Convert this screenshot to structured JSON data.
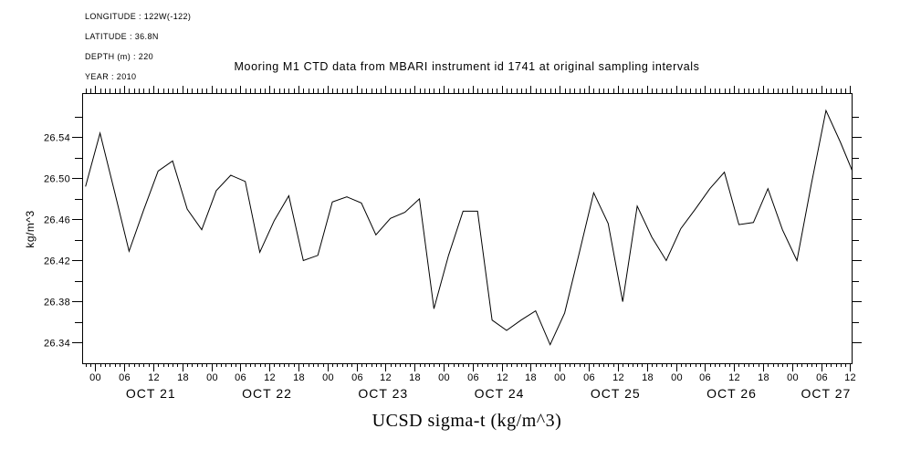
{
  "colors": {
    "background": "#ffffff",
    "foreground": "#000000",
    "line": "#000000"
  },
  "meta": {
    "lines": [
      "LONGITUDE : 122W(-122)",
      "LATITUDE : 36.8N",
      "DEPTH (m) : 220",
      "YEAR : 2010"
    ]
  },
  "header": {
    "title": "Mooring M1 CTD data from MBARI instrument id 1741 at original sampling intervals"
  },
  "chart_data": {
    "type": "line",
    "title": "Mooring M1 CTD data from MBARI instrument id 1741 at original sampling intervals",
    "ylabel": "kg/m^3",
    "xlabel": "UCSD sigma-t (kg/m^3)",
    "grid": false,
    "legend": "none",
    "ylim": [
      26.32,
      26.583
    ],
    "xlim_hours_from_oct21_0000": [
      -2.7,
      156.3
    ],
    "y_labeled_ticks": [
      26.34,
      26.38,
      26.42,
      26.46,
      26.5,
      26.54
    ],
    "y_tick_step": 0.02,
    "y_tick_range": [
      26.34,
      26.56
    ],
    "x_major_tick_step_hours": 6,
    "x_minor_tick_step_hours": 1,
    "x_hour_label_cycle": [
      "00",
      "06",
      "12",
      "18"
    ],
    "day_labels": [
      {
        "label": "OCT 21",
        "t": 11.5
      },
      {
        "label": "OCT 22",
        "t": 35.5
      },
      {
        "label": "OCT 23",
        "t": 59.5
      },
      {
        "label": "OCT 24",
        "t": 83.5
      },
      {
        "label": "OCT 25",
        "t": 107.5
      },
      {
        "label": "OCT 26",
        "t": 131.5
      },
      {
        "label": "OCT 27",
        "t": 151.0
      }
    ],
    "sampling_interval_hours": 3,
    "start_hour_offset_from_oct21_0000": -2,
    "times": [
      "Oct 20 22:00",
      "Oct 21 01:00",
      "Oct 21 04:00",
      "Oct 21 07:00",
      "Oct 21 10:00",
      "Oct 21 13:00",
      "Oct 21 16:00",
      "Oct 21 19:00",
      "Oct 21 22:00",
      "Oct 22 01:00",
      "Oct 22 04:00",
      "Oct 22 07:00",
      "Oct 22 10:00",
      "Oct 22 13:00",
      "Oct 22 16:00",
      "Oct 22 19:00",
      "Oct 22 22:00",
      "Oct 23 01:00",
      "Oct 23 04:00",
      "Oct 23 07:00",
      "Oct 23 10:00",
      "Oct 23 13:00",
      "Oct 23 16:00",
      "Oct 23 19:00",
      "Oct 23 22:00",
      "Oct 24 01:00",
      "Oct 24 04:00",
      "Oct 24 07:00",
      "Oct 24 10:00",
      "Oct 24 13:00",
      "Oct 24 16:00",
      "Oct 24 19:00",
      "Oct 24 22:00",
      "Oct 25 01:00",
      "Oct 25 04:00",
      "Oct 25 07:00",
      "Oct 25 10:00",
      "Oct 25 13:00",
      "Oct 25 16:00",
      "Oct 25 19:00",
      "Oct 25 22:00",
      "Oct 26 01:00",
      "Oct 26 04:00",
      "Oct 26 07:00",
      "Oct 26 10:00",
      "Oct 26 13:00",
      "Oct 26 16:00",
      "Oct 26 19:00",
      "Oct 26 22:00",
      "Oct 27 01:00",
      "Oct 27 04:00",
      "Oct 27 07:00",
      "Oct 27 10:00",
      "Oct 27 13:00"
    ],
    "values": [
      26.492,
      26.544,
      26.487,
      26.429,
      26.469,
      26.507,
      26.517,
      26.47,
      26.45,
      26.488,
      26.503,
      26.497,
      26.428,
      26.459,
      26.483,
      26.42,
      26.425,
      26.477,
      26.482,
      26.476,
      26.445,
      26.461,
      26.467,
      26.48,
      26.373,
      26.425,
      26.468,
      26.468,
      26.362,
      26.352,
      26.362,
      26.371,
      26.338,
      26.369,
      26.427,
      26.486,
      26.456,
      26.38,
      26.473,
      26.443,
      26.42,
      26.451,
      26.47,
      26.49,
      26.506,
      26.455,
      26.457,
      26.49,
      26.45,
      26.42,
      26.495,
      26.566,
      26.535,
      26.501
    ]
  }
}
